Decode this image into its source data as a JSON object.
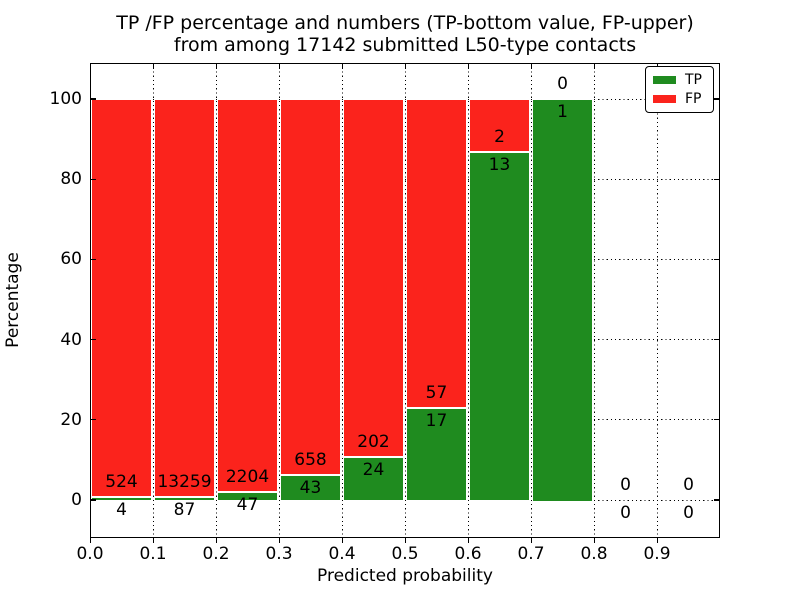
{
  "chart_data": {
    "type": "bar",
    "subtype": "stacked-percentage-histogram",
    "title_line1": "TP /FP percentage and numbers (TP-bottom value, FP-upper)",
    "title_line2": "from among 17142 submitted L50-type contacts",
    "xlabel": "Predicted probability",
    "ylabel": "Percentage",
    "total_submitted_contacts": 17142,
    "contact_type": "L50",
    "x_tick_labels": [
      "0.0",
      "0.1",
      "0.2",
      "0.3",
      "0.4",
      "0.5",
      "0.6",
      "0.7",
      "0.8",
      "0.9"
    ],
    "y_tick_values": [
      0,
      20,
      40,
      60,
      80,
      100
    ],
    "xlim": [
      0.0,
      1.0
    ],
    "ylim": [
      -9.5,
      109.0
    ],
    "grid": "dotted",
    "bar_total_height_pct": 100,
    "bins": [
      {
        "x_start": 0.0,
        "x_end": 0.1,
        "tp": 4,
        "fp": 524,
        "tp_pct": 0.76
      },
      {
        "x_start": 0.1,
        "x_end": 0.2,
        "tp": 87,
        "fp": 13259,
        "tp_pct": 0.65
      },
      {
        "x_start": 0.2,
        "x_end": 0.3,
        "tp": 47,
        "fp": 2204,
        "tp_pct": 2.09
      },
      {
        "x_start": 0.3,
        "x_end": 0.4,
        "tp": 43,
        "fp": 658,
        "tp_pct": 6.13
      },
      {
        "x_start": 0.4,
        "x_end": 0.5,
        "tp": 24,
        "fp": 202,
        "tp_pct": 10.62
      },
      {
        "x_start": 0.5,
        "x_end": 0.6,
        "tp": 17,
        "fp": 57,
        "tp_pct": 22.97
      },
      {
        "x_start": 0.6,
        "x_end": 0.7,
        "tp": 13,
        "fp": 2,
        "tp_pct": 86.67
      },
      {
        "x_start": 0.7,
        "x_end": 0.8,
        "tp": 1,
        "fp": 0,
        "tp_pct": 100
      },
      {
        "x_start": 0.8,
        "x_end": 0.9,
        "tp": 0,
        "fp": 0,
        "tp_pct": 0
      },
      {
        "x_start": 0.9,
        "x_end": 1.0,
        "tp": 0,
        "fp": 0,
        "tp_pct": 0
      }
    ],
    "colors": {
      "tp": "#1f8b1f",
      "fp": "#fb231c",
      "grid": "#000000",
      "background": "#ffffff"
    },
    "legend": {
      "position": "upper right",
      "items": [
        {
          "label": "TP",
          "color": "#1f8b1f"
        },
        {
          "label": "FP",
          "color": "#fb231c"
        }
      ]
    }
  }
}
